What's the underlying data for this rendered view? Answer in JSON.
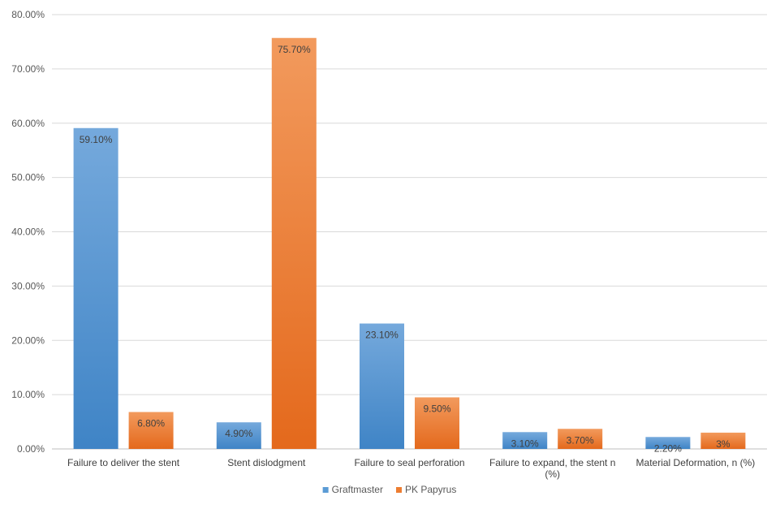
{
  "chart_data": {
    "type": "bar",
    "categories": [
      "Failure to deliver the stent",
      "Stent dislodgment",
      "Failure to seal perforation",
      "Failure to expand, the stent n (%)",
      "Material Deformation, n (%)"
    ],
    "series": [
      {
        "name": "Graftmaster",
        "values": [
          59.1,
          4.9,
          23.1,
          3.1,
          2.2
        ],
        "labels": [
          "59.10%",
          "4.90%",
          "23.10%",
          "3.10%",
          "2.20%"
        ],
        "color": "#5b9bd5"
      },
      {
        "name": "PK Papyrus",
        "values": [
          6.8,
          75.7,
          9.5,
          3.7,
          3
        ],
        "labels": [
          "6.80%",
          "75.70%",
          "9.50%",
          "3.70%",
          "3%"
        ],
        "color": "#ed7d31"
      }
    ],
    "y_ticks": [
      "0.00%",
      "10.00%",
      "20.00%",
      "30.00%",
      "40.00%",
      "50.00%",
      "60.00%",
      "70.00%",
      "80.00%"
    ],
    "ylim": [
      0,
      80
    ],
    "grid": true,
    "legend_position": "bottom",
    "title": "",
    "xlabel": "",
    "ylabel": ""
  }
}
